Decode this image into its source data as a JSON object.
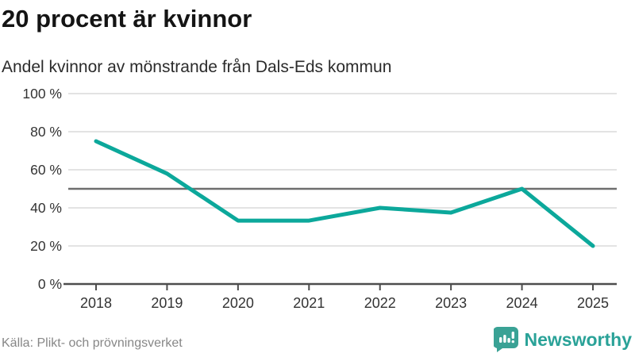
{
  "header": {
    "title": "20 procent är kvinnor",
    "subtitle": "Andel kvinnor av mönstrande från Dals-Eds kommun"
  },
  "footer": {
    "source": "Källa: Plikt- och prövningsverket",
    "brand": "Newsworthy"
  },
  "colors": {
    "line": "#0ca89b",
    "brand": "#3aa295",
    "grid": "#e3e3e3",
    "reference_line": "#6e6e6e",
    "axis": "#4d4d4d",
    "axis_label": "#333333"
  },
  "chart_data": {
    "type": "line",
    "title": "20 procent är kvinnor",
    "subtitle": "Andel kvinnor av mönstrande från Dals-Eds kommun",
    "x": [
      2018,
      2019,
      2020,
      2021,
      2022,
      2023,
      2024,
      2025
    ],
    "series": [
      {
        "name": "Andel kvinnor av mönstrande",
        "values": [
          75,
          58,
          33.3,
          33.3,
          40,
          37.5,
          50,
          20
        ]
      }
    ],
    "ylim": [
      0,
      100
    ],
    "yticks": [
      0,
      20,
      40,
      60,
      80,
      100
    ],
    "ytick_labels": [
      "0 %",
      "20 %",
      "40 %",
      "60 %",
      "80 %",
      "100 %"
    ],
    "unit": "%",
    "reference_line": 50,
    "grid": "horizontal",
    "legend": "none"
  }
}
